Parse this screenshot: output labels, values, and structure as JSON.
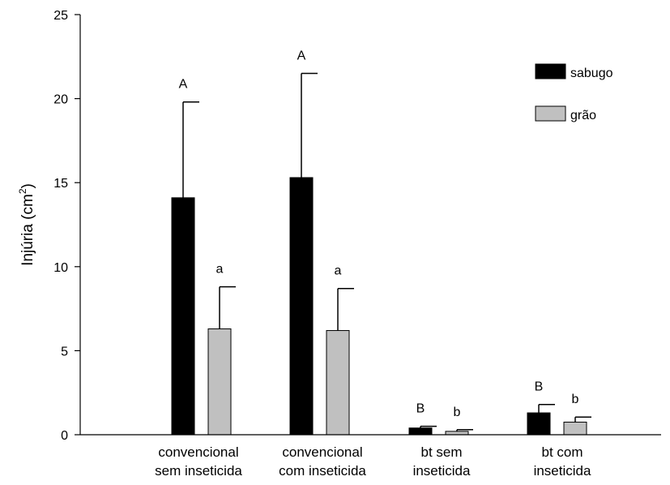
{
  "chart_data": {
    "type": "bar",
    "ylabel": "Injúria (cm",
    "ylabel_superscript": "2",
    "ylabel_close": ")",
    "ylim": [
      0,
      25
    ],
    "yticks": [
      0,
      5,
      10,
      15,
      20,
      25
    ],
    "grid": false,
    "legend_position": "top-right",
    "categories": [
      {
        "line1": "convencional",
        "line2": "sem inseticida"
      },
      {
        "line1": "convencional",
        "line2": "com inseticida"
      },
      {
        "line1": "bt sem",
        "line2": "inseticida"
      },
      {
        "line1": "bt com",
        "line2": "inseticida"
      }
    ],
    "series": [
      {
        "name": "sabugo",
        "color": "#000000",
        "values": [
          14.1,
          15.3,
          0.4,
          1.3
        ],
        "errors": [
          5.7,
          6.2,
          0.1,
          0.5
        ],
        "letters": [
          "A",
          "A",
          "B",
          "B"
        ]
      },
      {
        "name": "grão",
        "color": "#c0c0c0",
        "values": [
          6.3,
          6.2,
          0.2,
          0.75
        ],
        "errors": [
          2.5,
          2.5,
          0.1,
          0.3
        ],
        "letters": [
          "a",
          "a",
          "b",
          "b"
        ]
      }
    ]
  }
}
